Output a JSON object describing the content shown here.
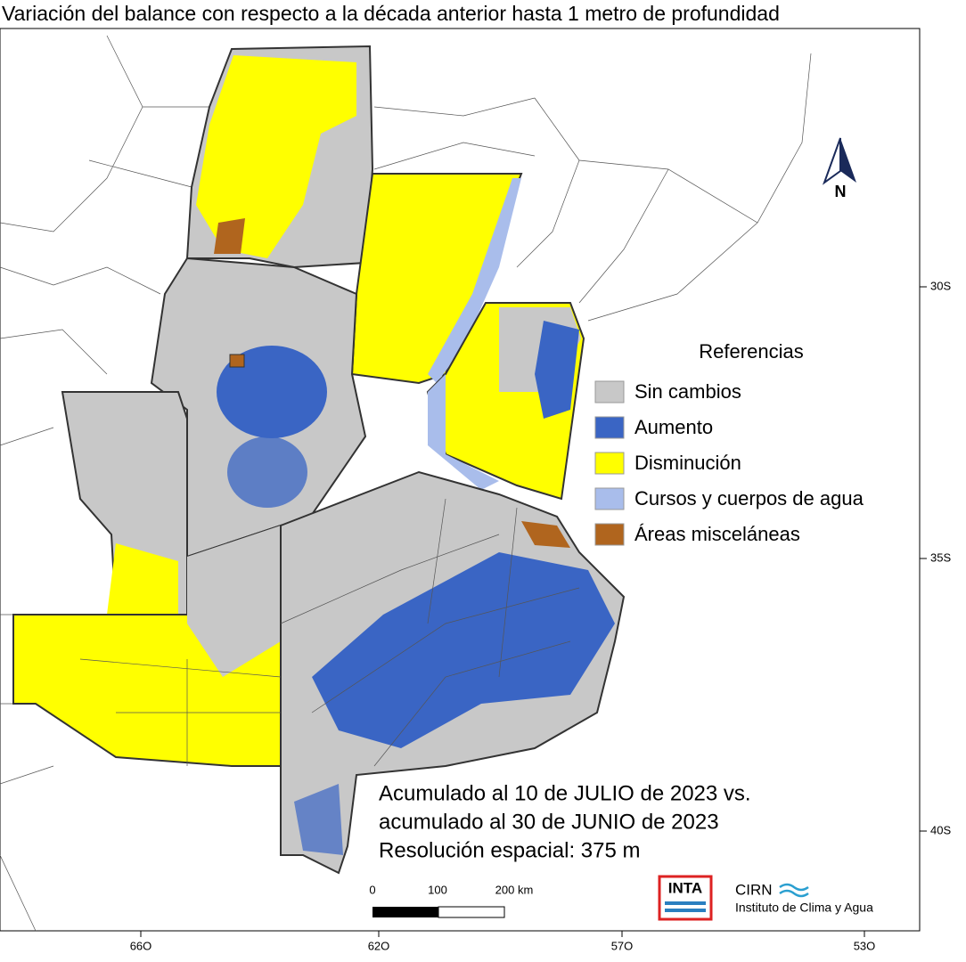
{
  "title": "Variación del balance con respecto a la década anterior hasta 1 metro de profundidad",
  "north_label": "N",
  "legend": {
    "title": "Referencias",
    "items": [
      {
        "label": "Sin cambios",
        "color": "#c8c8c8"
      },
      {
        "label": "Aumento",
        "color": "#3a65c4"
      },
      {
        "label": "Disminución",
        "color": "#ffff00"
      },
      {
        "label": "Cursos y cuerpos de agua",
        "color": "#a9bdeb"
      },
      {
        "label": "Áreas misceláneas",
        "color": "#b0651e"
      }
    ]
  },
  "annotation": [
    "Acumulado al 10 de JULIO de 2023 vs.",
    "acumulado al 30 de JUNIO de 2023",
    "Resolución espacial: 375 m"
  ],
  "latitude_labels": [
    "30S",
    "35S",
    "40S"
  ],
  "longitude_labels": [
    "66O",
    "62O",
    "57O",
    "53O"
  ],
  "scale_labels": [
    "0",
    "100",
    "200 km"
  ],
  "logos": {
    "inta": "INTA",
    "cirn": "CIRN",
    "institute": "Instituto de Clima y Agua"
  }
}
